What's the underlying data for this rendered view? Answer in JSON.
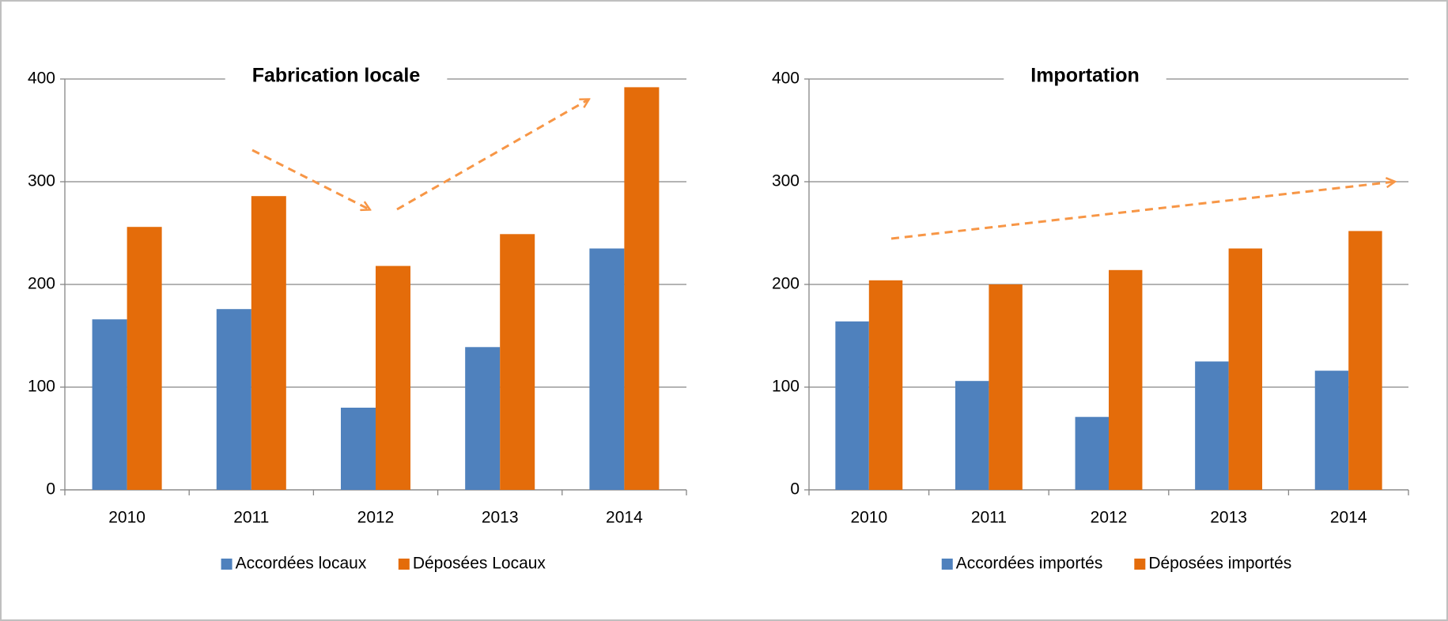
{
  "chart_data": [
    {
      "type": "bar",
      "title": "Fabrication locale",
      "categories": [
        "2010",
        "2011",
        "2012",
        "2013",
        "2014"
      ],
      "series": [
        {
          "name": "Accordées locaux",
          "color": "#4f81bd",
          "values": [
            166,
            176,
            80,
            139,
            235
          ]
        },
        {
          "name": "Déposées Locaux",
          "color": "#e46c0a",
          "values": [
            256,
            286,
            218,
            249,
            392
          ]
        }
      ],
      "ylim": [
        0,
        400
      ],
      "yticks": [
        0,
        100,
        200,
        300,
        400
      ],
      "grid": true,
      "legend": "bottom"
    },
    {
      "type": "bar",
      "title": "Importation",
      "categories": [
        "2010",
        "2011",
        "2012",
        "2013",
        "2014"
      ],
      "series": [
        {
          "name": "Accordées importés",
          "color": "#4f81bd",
          "values": [
            164,
            106,
            71,
            125,
            116
          ]
        },
        {
          "name": "Déposées importés",
          "color": "#e46c0a",
          "values": [
            204,
            200,
            214,
            235,
            252
          ]
        }
      ],
      "ylim": [
        0,
        400
      ],
      "yticks": [
        0,
        100,
        200,
        300,
        400
      ],
      "grid": true,
      "legend": "bottom"
    }
  ]
}
